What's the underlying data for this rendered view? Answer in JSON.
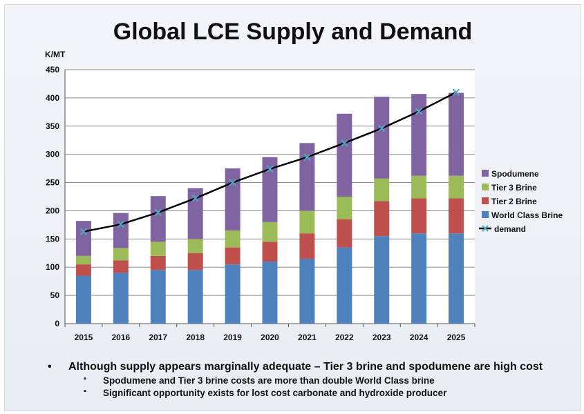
{
  "page": {
    "title": "Global LCE Supply and Demand",
    "notes": {
      "main": "Although supply appears marginally adequate – Tier 3 brine and spodumene are high cost",
      "subs": [
        "Spodumene and Tier 3 brine costs are more than double World Class brine",
        "Significant opportunity exists for lost cost carbonate and hydroxide producer"
      ]
    }
  },
  "chart_data": {
    "type": "bar",
    "stacked": true,
    "title": "Global LCE Supply and Demand",
    "ylabel": "K/MT",
    "xlabel": "",
    "ylim": [
      0,
      450
    ],
    "yticks": [
      0,
      50,
      100,
      150,
      200,
      250,
      300,
      350,
      400,
      450
    ],
    "grid": true,
    "legend_position": "right",
    "categories": [
      "2015",
      "2016",
      "2017",
      "2018",
      "2019",
      "2020",
      "2021",
      "2022",
      "2023",
      "2024",
      "2025"
    ],
    "series": [
      {
        "name": "World Class Brine",
        "color": "#4f81bd",
        "values": [
          85,
          90,
          95,
          95,
          105,
          110,
          115,
          135,
          155,
          160,
          160
        ]
      },
      {
        "name": "Tier 2 Brine",
        "color": "#c0504d",
        "values": [
          20,
          22,
          25,
          30,
          30,
          35,
          45,
          50,
          62,
          62,
          62
        ]
      },
      {
        "name": "Tier 3 Brine",
        "color": "#9bbb59",
        "values": [
          15,
          22,
          25,
          25,
          30,
          35,
          40,
          40,
          40,
          40,
          40
        ]
      },
      {
        "name": "Spodumene",
        "color": "#8064a2",
        "values": [
          62,
          62,
          81,
          90,
          110,
          115,
          120,
          147,
          145,
          145,
          147
        ]
      }
    ],
    "line": {
      "name": "demand",
      "color": "#000000",
      "marker_color": "#4bacc6",
      "values": [
        163,
        176,
        197,
        222,
        250,
        274,
        295,
        320,
        346,
        376,
        410
      ]
    }
  }
}
